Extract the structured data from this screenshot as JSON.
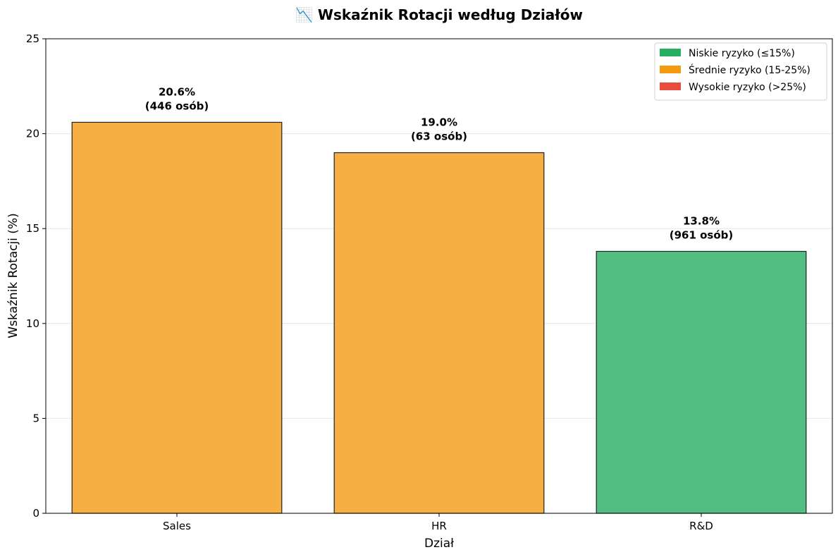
{
  "chart_data": {
    "type": "bar",
    "title": "📉 Wskaźnik Rotacji według Działów",
    "xlabel": "Dział",
    "ylabel": "Wskaźnik Rotacji (%)",
    "ylim": [
      0,
      25
    ],
    "yticks": [
      "0",
      "5",
      "10",
      "15",
      "20",
      "25"
    ],
    "categories": [
      "Sales",
      "HR",
      "R&D"
    ],
    "values": [
      20.6,
      19.0,
      13.8
    ],
    "data_labels": [
      [
        "20.6%",
        "(446 osób)"
      ],
      [
        "19.0%",
        "(63 osób)"
      ],
      [
        "13.8%",
        "(961 osób)"
      ]
    ],
    "bar_colors": [
      "#F5AF42",
      "#F5AF42",
      "#52BE80"
    ],
    "grid": "horizontal",
    "legend": {
      "placement": "top-right",
      "entries": [
        {
          "label": "Niskie ryzyko (≤15%)",
          "color": "#27AE60"
        },
        {
          "label": "Średnie ryzyko (15-25%)",
          "color": "#F39C12"
        },
        {
          "label": "Wysokie ryzyko (>25%)",
          "color": "#E74C3C"
        }
      ]
    }
  }
}
